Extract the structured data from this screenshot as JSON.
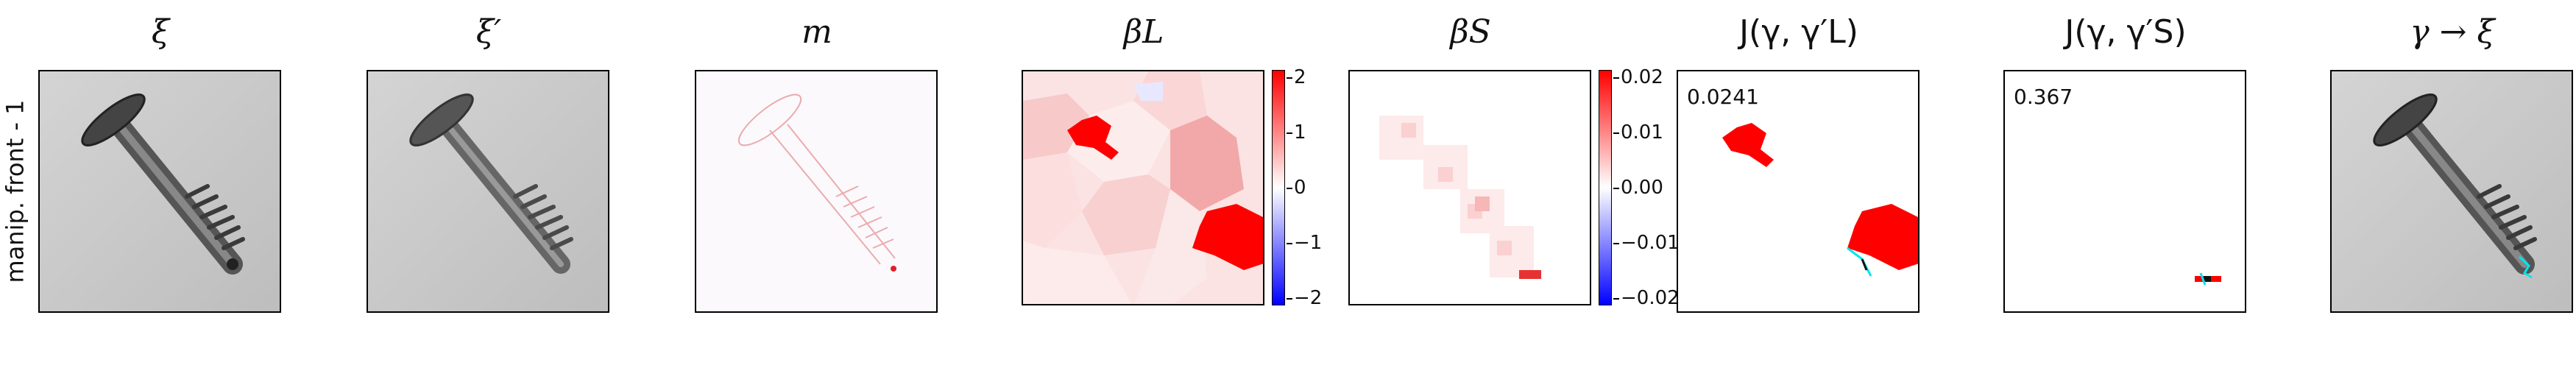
{
  "row_label": "manip. front - 1",
  "panels": [
    {
      "title": "ξ"
    },
    {
      "title": "ξ′"
    },
    {
      "title": "m"
    },
    {
      "title": "βL"
    },
    {
      "title": "βS"
    },
    {
      "title": "J(γ, γ′L)",
      "value": "0.0241"
    },
    {
      "title": "J(γ, γ′S)",
      "value": "0.367"
    },
    {
      "title": "γ → ξ"
    }
  ],
  "colorbars": {
    "beta_l": {
      "ticks": [
        "2",
        "1",
        "0",
        "−1",
        "−2"
      ]
    },
    "beta_s": {
      "ticks": [
        "0.02",
        "0.01",
        "0.00",
        "−0.01",
        "−0.02"
      ]
    }
  },
  "colors": {
    "red": "#ff0000",
    "blue": "#0000ff",
    "cyan": "#00e5ee"
  }
}
